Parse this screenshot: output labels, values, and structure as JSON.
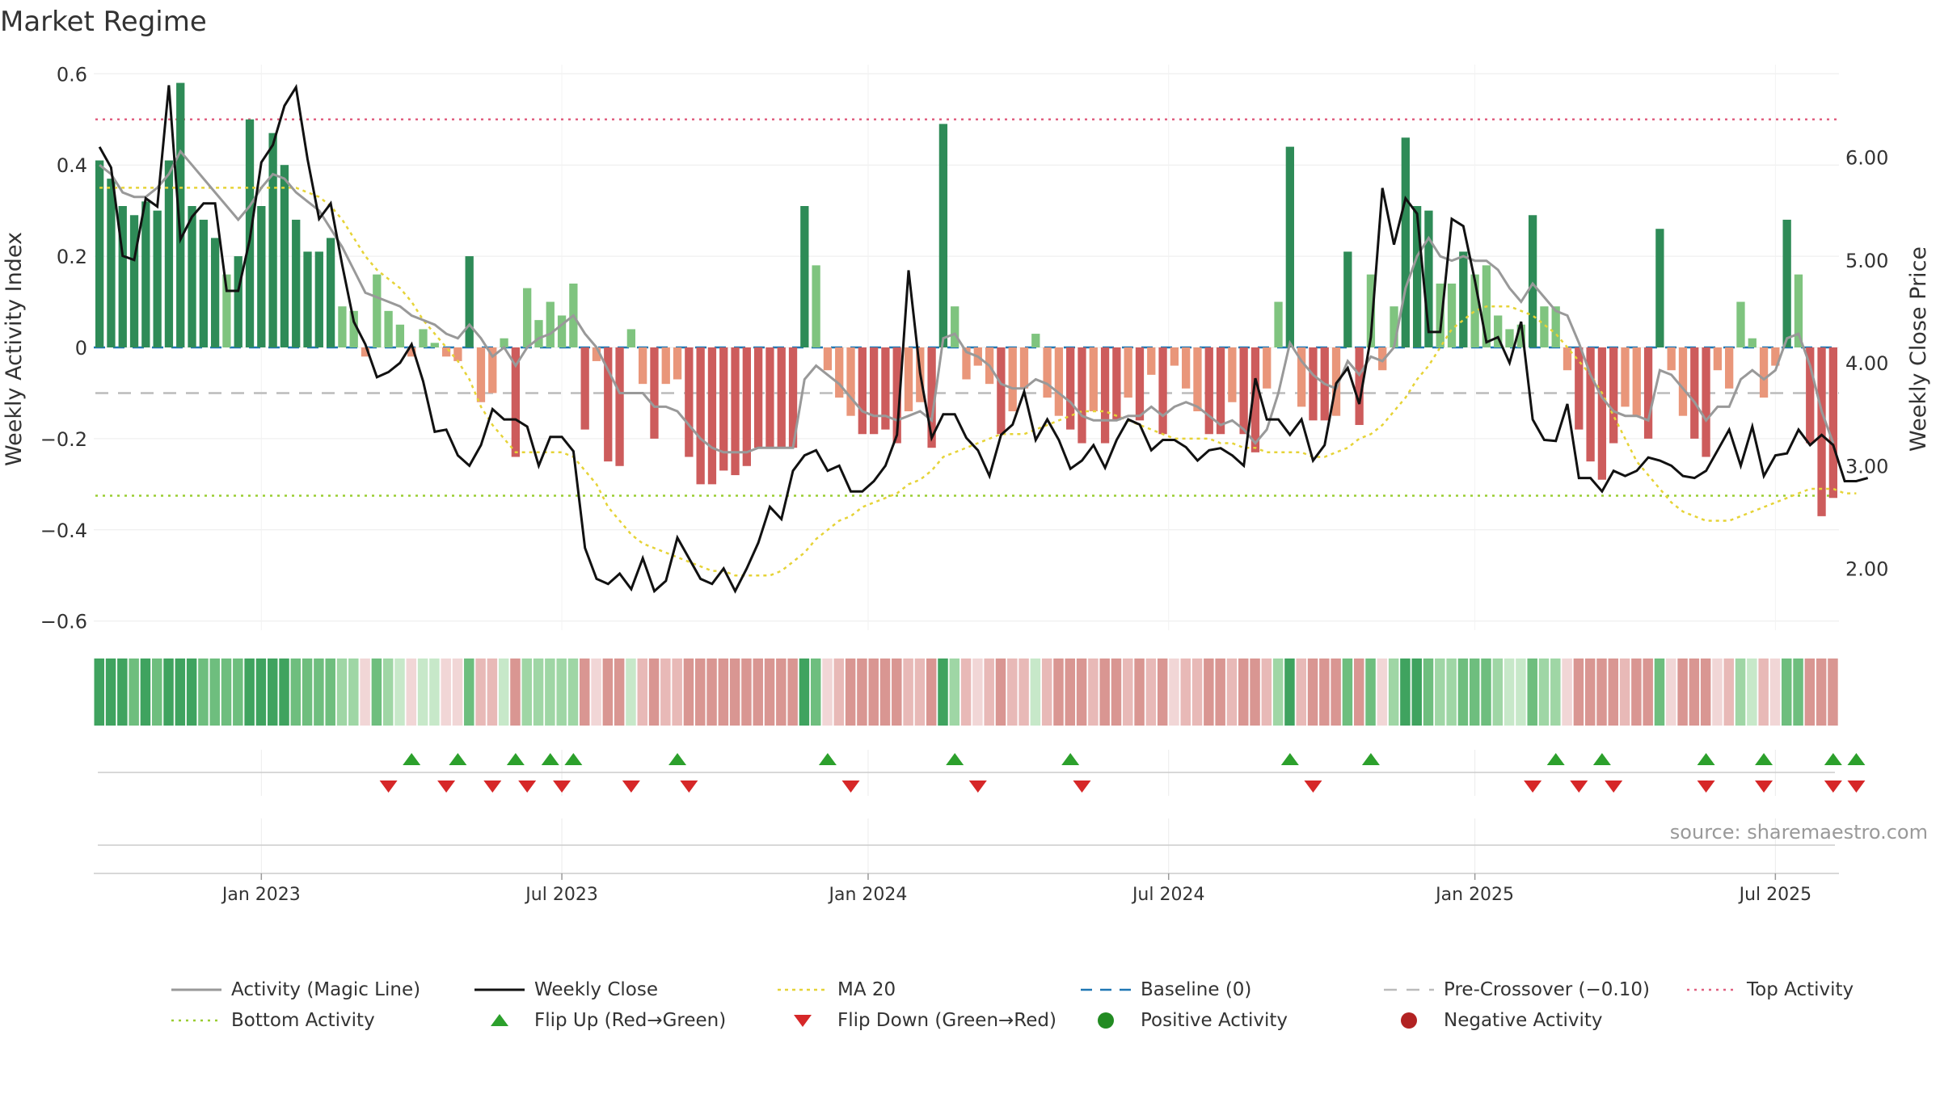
{
  "title": "Market Regime",
  "source": "source: sharemaestro.com",
  "colors": {
    "green_dark": "#2e8b57",
    "green_light": "#7fc47f",
    "red_dark": "#cd5c5c",
    "red_light": "#e9967a",
    "magic_line": "#999999",
    "close_line": "#111111",
    "ma20": "#e6d337",
    "baseline": "#1f77b4",
    "pre_crossover": "#bbbbbb",
    "top_activity": "#e06080",
    "bottom_activity": "#9acd32",
    "flip_up": "#2ca02c",
    "flip_down": "#d62728"
  },
  "legend": [
    {
      "label": "Activity (Magic Line)",
      "symbol": "line-solid-gray"
    },
    {
      "label": "Weekly Close",
      "symbol": "line-solid-black"
    },
    {
      "label": "MA 20",
      "symbol": "line-dotted-yellow"
    },
    {
      "label": "Baseline (0)",
      "symbol": "line-dashed-blue"
    },
    {
      "label": "Pre-Crossover (−0.10)",
      "symbol": "line-dashed-gray"
    },
    {
      "label": "Top Activity",
      "symbol": "line-dotted-red"
    },
    {
      "label": "Bottom Activity",
      "symbol": "line-dotted-green"
    },
    {
      "label": "Flip Up (Red→Green)",
      "symbol": "triangle-up-green"
    },
    {
      "label": "Flip Down (Green→Red)",
      "symbol": "triangle-down-red"
    },
    {
      "label": "Positive Activity",
      "symbol": "dot-green"
    },
    {
      "label": "Negative Activity",
      "symbol": "dot-red"
    }
  ],
  "chart_data": {
    "type": "bar",
    "title": "Market Regime",
    "ylabel": "Weekly Activity Index",
    "y2label": "Weekly Close Price",
    "ylim": [
      -0.62,
      0.62
    ],
    "y2lim": [
      1.4,
      6.9
    ],
    "yticks": [
      {
        "value": 0.6,
        "label": "0.6"
      },
      {
        "value": 0.4,
        "label": "0.4"
      },
      {
        "value": 0.2,
        "label": "0.2"
      },
      {
        "value": 0,
        "label": "0"
      },
      {
        "value": -0.2,
        "label": "−0.2"
      },
      {
        "value": -0.4,
        "label": "−0.4"
      },
      {
        "value": -0.6,
        "label": "−0.6"
      }
    ],
    "y2ticks": [
      {
        "value": 6.0,
        "label": "6.00"
      },
      {
        "value": 5.0,
        "label": "5.00"
      },
      {
        "value": 4.0,
        "label": "4.00"
      },
      {
        "value": 3.0,
        "label": "3.00"
      },
      {
        "value": 2.0,
        "label": "2.00"
      }
    ],
    "xticks": [
      {
        "week": 14.5,
        "label": "Jan 2023"
      },
      {
        "week": 40.5,
        "label": "Jul 2023"
      },
      {
        "week": 67,
        "label": "Jan 2024"
      },
      {
        "week": 93,
        "label": "Jul 2024"
      },
      {
        "week": 119.5,
        "label": "Jan 2025"
      },
      {
        "week": 145.5,
        "label": "Jul 2025"
      }
    ],
    "reference_lines": {
      "top_activity": 0.5,
      "bottom_activity": -0.325,
      "pre_crossover": -0.1,
      "baseline": 0
    },
    "activity": [
      0.41,
      0.37,
      0.31,
      0.29,
      0.32,
      0.3,
      0.41,
      0.58,
      0.31,
      0.28,
      0.24,
      0.16,
      0.2,
      0.5,
      0.31,
      0.47,
      0.4,
      0.28,
      0.21,
      0.21,
      0.24,
      0.09,
      0.08,
      -0.02,
      0.16,
      0.08,
      0.05,
      -0.02,
      0.04,
      0.01,
      -0.02,
      -0.03,
      0.2,
      -0.12,
      -0.1,
      0.02,
      -0.24,
      0.13,
      0.06,
      0.1,
      0.07,
      0.14,
      -0.18,
      -0.03,
      -0.25,
      -0.26,
      0.04,
      -0.08,
      -0.2,
      -0.08,
      -0.07,
      -0.24,
      -0.3,
      -0.3,
      -0.27,
      -0.28,
      -0.26,
      -0.22,
      -0.22,
      -0.22,
      -0.22,
      0.31,
      0.18,
      -0.05,
      -0.11,
      -0.15,
      -0.19,
      -0.19,
      -0.18,
      -0.21,
      -0.14,
      -0.12,
      -0.22,
      0.49,
      0.09,
      -0.07,
      -0.04,
      -0.08,
      -0.19,
      -0.14,
      -0.09,
      0.03,
      -0.11,
      -0.15,
      -0.18,
      -0.21,
      -0.14,
      -0.21,
      -0.16,
      -0.11,
      -0.16,
      -0.06,
      -0.19,
      -0.04,
      -0.09,
      -0.14,
      -0.19,
      -0.19,
      -0.12,
      -0.19,
      -0.23,
      -0.09,
      0.1,
      0.44,
      -0.13,
      -0.16,
      -0.16,
      -0.15,
      0.21,
      -0.17,
      0.16,
      -0.05,
      0.09,
      0.46,
      0.31,
      0.3,
      0.14,
      0.14,
      0.21,
      0.16,
      0.18,
      0.07,
      0.04,
      0.05,
      0.29,
      0.09,
      0.09,
      -0.05,
      -0.18,
      -0.25,
      -0.29,
      -0.21,
      -0.13,
      -0.15,
      -0.2,
      0.26,
      -0.05,
      -0.15,
      -0.2,
      -0.24,
      -0.05,
      -0.09,
      0.1,
      0.02,
      -0.11,
      -0.04,
      0.28,
      0.16,
      -0.21,
      -0.37,
      -0.33
    ],
    "close": [
      6.1,
      5.9,
      5.04,
      5.0,
      5.6,
      5.52,
      6.7,
      5.2,
      5.42,
      5.55,
      5.55,
      4.7,
      4.7,
      5.2,
      5.95,
      6.12,
      6.5,
      6.68,
      5.98,
      5.4,
      5.55,
      4.95,
      4.4,
      4.18,
      3.86,
      3.91,
      4.0,
      4.18,
      3.82,
      3.33,
      3.35,
      3.1,
      3.0,
      3.2,
      3.55,
      3.45,
      3.45,
      3.38,
      3.0,
      3.28,
      3.28,
      3.14,
      2.2,
      1.9,
      1.85,
      1.95,
      1.8,
      2.1,
      1.78,
      1.88,
      2.3,
      2.1,
      1.9,
      1.85,
      2.0,
      1.78,
      2.0,
      2.25,
      2.6,
      2.48,
      2.95,
      3.1,
      3.15,
      2.95,
      3.0,
      2.75,
      2.75,
      2.85,
      3.0,
      3.3,
      4.9,
      3.9,
      3.27,
      3.5,
      3.5,
      3.27,
      3.15,
      2.9,
      3.3,
      3.4,
      3.72,
      3.25,
      3.45,
      3.25,
      2.97,
      3.05,
      3.2,
      2.98,
      3.25,
      3.45,
      3.4,
      3.15,
      3.25,
      3.25,
      3.18,
      3.05,
      3.15,
      3.17,
      3.1,
      3.0,
      3.85,
      3.45,
      3.45,
      3.3,
      3.45,
      3.05,
      3.2,
      3.8,
      3.95,
      3.6,
      4.25,
      5.7,
      5.15,
      5.6,
      5.45,
      4.3,
      4.3,
      5.4,
      5.33,
      4.8,
      4.2,
      4.25,
      4.0,
      4.4,
      3.45,
      3.25,
      3.24,
      3.6,
      2.88,
      2.88,
      2.75,
      2.95,
      2.9,
      2.95,
      3.08,
      3.05,
      3.0,
      2.9,
      2.88,
      2.95,
      3.15,
      3.35,
      3.0,
      3.38,
      2.9,
      3.1,
      3.12,
      3.35,
      3.2,
      3.3,
      3.2,
      2.85,
      2.85,
      2.88
    ],
    "magic_line": [
      0.4,
      0.38,
      0.34,
      0.33,
      0.33,
      0.35,
      0.38,
      0.43,
      0.4,
      0.37,
      0.34,
      0.31,
      0.28,
      0.31,
      0.35,
      0.38,
      0.37,
      0.34,
      0.32,
      0.3,
      0.26,
      0.22,
      0.17,
      0.12,
      0.11,
      0.1,
      0.09,
      0.07,
      0.06,
      0.05,
      0.03,
      0.02,
      0.05,
      0.02,
      -0.02,
      0.0,
      -0.04,
      0.0,
      0.02,
      0.03,
      0.05,
      0.07,
      0.03,
      0.0,
      -0.05,
      -0.1,
      -0.1,
      -0.1,
      -0.13,
      -0.13,
      -0.14,
      -0.17,
      -0.2,
      -0.22,
      -0.23,
      -0.23,
      -0.23,
      -0.22,
      -0.22,
      -0.22,
      -0.22,
      -0.07,
      -0.04,
      -0.06,
      -0.08,
      -0.11,
      -0.14,
      -0.15,
      -0.15,
      -0.16,
      -0.15,
      -0.14,
      -0.16,
      0.02,
      0.03,
      -0.01,
      -0.02,
      -0.04,
      -0.08,
      -0.09,
      -0.09,
      -0.07,
      -0.08,
      -0.1,
      -0.12,
      -0.15,
      -0.16,
      -0.16,
      -0.16,
      -0.15,
      -0.15,
      -0.13,
      -0.15,
      -0.13,
      -0.12,
      -0.13,
      -0.15,
      -0.17,
      -0.16,
      -0.18,
      -0.21,
      -0.18,
      -0.1,
      0.01,
      -0.03,
      -0.06,
      -0.08,
      -0.09,
      -0.03,
      -0.06,
      -0.02,
      -0.03,
      0.0,
      0.13,
      0.2,
      0.24,
      0.2,
      0.19,
      0.2,
      0.19,
      0.19,
      0.17,
      0.13,
      0.1,
      0.14,
      0.11,
      0.08,
      0.07,
      0.01,
      -0.06,
      -0.11,
      -0.14,
      -0.15,
      -0.15,
      -0.16,
      -0.05,
      -0.06,
      -0.09,
      -0.12,
      -0.16,
      -0.13,
      -0.13,
      -0.07,
      -0.05,
      -0.07,
      -0.05,
      0.02,
      0.03,
      -0.04,
      -0.14,
      -0.21
    ],
    "ma20": [
      0.35,
      0.35,
      0.35,
      0.35,
      0.35,
      0.35,
      0.35,
      0.35,
      0.35,
      0.35,
      0.35,
      0.35,
      0.35,
      0.35,
      0.35,
      0.35,
      0.35,
      0.35,
      0.34,
      0.33,
      0.31,
      0.28,
      0.24,
      0.2,
      0.17,
      0.15,
      0.13,
      0.1,
      0.06,
      0.03,
      0.0,
      -0.03,
      -0.07,
      -0.13,
      -0.17,
      -0.2,
      -0.23,
      -0.23,
      -0.23,
      -0.23,
      -0.23,
      -0.24,
      -0.27,
      -0.3,
      -0.35,
      -0.38,
      -0.41,
      -0.43,
      -0.44,
      -0.45,
      -0.46,
      -0.47,
      -0.48,
      -0.49,
      -0.49,
      -0.5,
      -0.5,
      -0.5,
      -0.5,
      -0.49,
      -0.47,
      -0.45,
      -0.42,
      -0.4,
      -0.38,
      -0.37,
      -0.35,
      -0.34,
      -0.33,
      -0.32,
      -0.3,
      -0.29,
      -0.27,
      -0.24,
      -0.23,
      -0.22,
      -0.21,
      -0.2,
      -0.19,
      -0.19,
      -0.19,
      -0.18,
      -0.17,
      -0.16,
      -0.15,
      -0.14,
      -0.14,
      -0.14,
      -0.15,
      -0.16,
      -0.17,
      -0.18,
      -0.19,
      -0.2,
      -0.2,
      -0.2,
      -0.2,
      -0.21,
      -0.21,
      -0.22,
      -0.22,
      -0.23,
      -0.23,
      -0.23,
      -0.23,
      -0.24,
      -0.24,
      -0.23,
      -0.22,
      -0.2,
      -0.19,
      -0.17,
      -0.14,
      -0.11,
      -0.07,
      -0.04,
      0.0,
      0.04,
      0.06,
      0.08,
      0.09,
      0.09,
      0.09,
      0.08,
      0.07,
      0.05,
      0.03,
      0.0,
      -0.03,
      -0.06,
      -0.1,
      -0.15,
      -0.2,
      -0.25,
      -0.28,
      -0.31,
      -0.34,
      -0.36,
      -0.37,
      -0.38,
      -0.38,
      -0.38,
      -0.37,
      -0.36,
      -0.35,
      -0.34,
      -0.33,
      -0.32,
      -0.31,
      -0.31,
      -0.31,
      -0.32,
      -0.32
    ],
    "flip_up_weeks": [
      27,
      31,
      36,
      39,
      41,
      50,
      63,
      74,
      84,
      103,
      110,
      126,
      130,
      139,
      144,
      150,
      152
    ],
    "flip_down_weeks": [
      25,
      30,
      34,
      37,
      40,
      46,
      51,
      65,
      76,
      85,
      105,
      124,
      128,
      131,
      139,
      144,
      150,
      152
    ]
  }
}
